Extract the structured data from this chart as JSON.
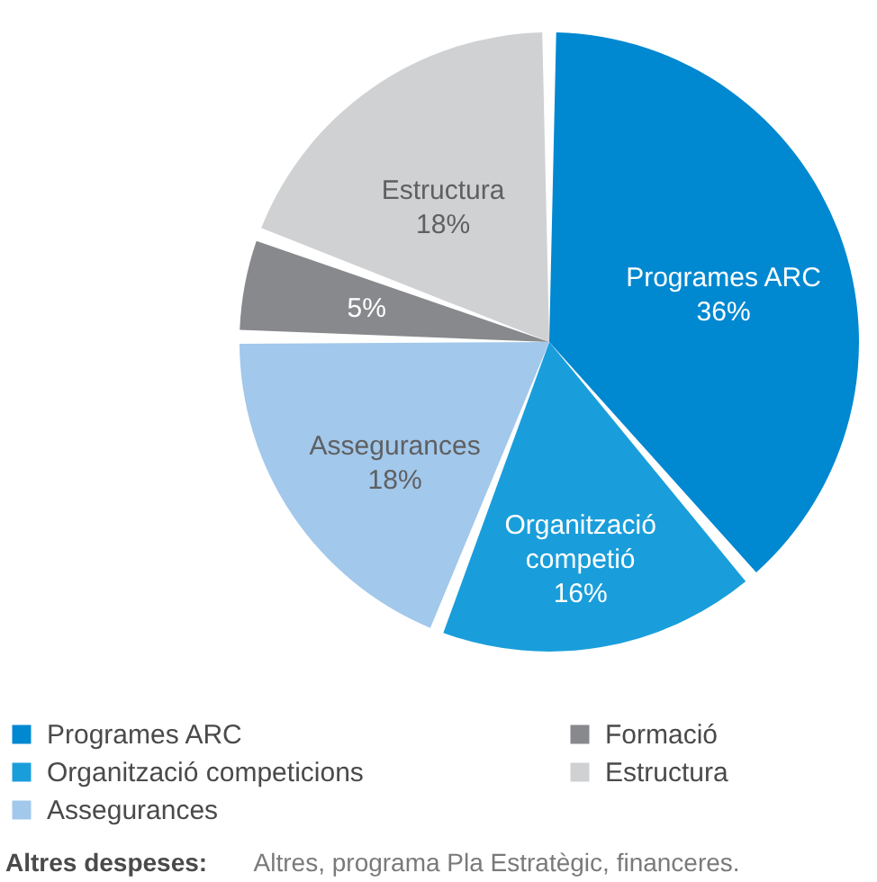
{
  "chart_data": {
    "type": "pie",
    "categories": [
      "Programes ARC",
      "Organització competicions",
      "Assegurances",
      "Formació",
      "Estructura"
    ],
    "values": [
      36,
      16,
      18,
      5,
      18
    ],
    "colors": [
      "#0088d1",
      "#1a9edb",
      "#a2c8eb",
      "#88898c",
      "#d0d1d3"
    ],
    "value_labels": [
      "Programes ARC\n36%",
      "Organització\ncompetió\n16%",
      "Assegurances\n18%",
      "5%",
      "Estructura\n18%"
    ],
    "legend": "bottom",
    "annotations": [
      "Altres despeses:",
      "Altres, programa Pla Estratègic, financeres."
    ]
  }
}
